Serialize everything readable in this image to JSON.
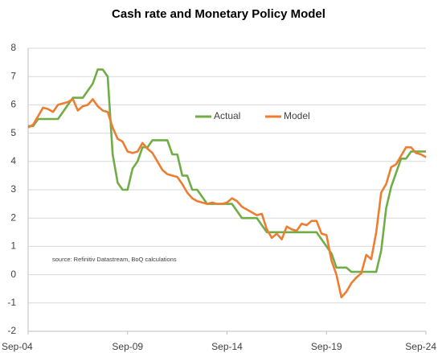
{
  "chart_data": {
    "type": "line",
    "title": "Cash rate and Monetary Policy Model",
    "annotation": "source:  Refinitiv Datastream, BoQ calculations",
    "legend": "center",
    "grid": true,
    "categories": [
      "Sep-04",
      null,
      null,
      null,
      null,
      null,
      null,
      null,
      null,
      null,
      null,
      null,
      null,
      null,
      null,
      null,
      null,
      null,
      null,
      null,
      "Sep-09",
      null,
      null,
      null,
      null,
      null,
      null,
      null,
      null,
      null,
      null,
      null,
      null,
      null,
      null,
      null,
      null,
      null,
      null,
      null,
      "Sep-14",
      null,
      null,
      null,
      null,
      null,
      null,
      null,
      null,
      null,
      null,
      null,
      null,
      null,
      null,
      null,
      null,
      null,
      null,
      null,
      "Sep-19",
      null,
      null,
      null,
      null,
      null,
      null,
      null,
      null,
      null,
      null,
      null,
      null,
      null,
      null,
      null,
      null,
      null,
      null,
      null,
      "Sep-24"
    ],
    "ylim": [
      -2,
      8
    ],
    "yticks": [
      -2,
      -1,
      0,
      1,
      2,
      3,
      4,
      5,
      6,
      7,
      8
    ],
    "series": [
      {
        "name": "Actual",
        "color": "#70ad47",
        "values": [
          5.25,
          5.25,
          5.5,
          5.5,
          5.5,
          5.5,
          5.5,
          5.75,
          6.0,
          6.25,
          6.25,
          6.25,
          6.5,
          6.75,
          7.25,
          7.25,
          7.0,
          4.25,
          3.25,
          3.0,
          3.0,
          3.75,
          4.0,
          4.5,
          4.5,
          4.75,
          4.75,
          4.75,
          4.75,
          4.25,
          4.25,
          3.5,
          3.5,
          3.0,
          3.0,
          2.75,
          2.5,
          2.5,
          2.5,
          2.5,
          2.5,
          2.5,
          2.25,
          2.0,
          2.0,
          2.0,
          2.0,
          1.75,
          1.5,
          1.5,
          1.5,
          1.5,
          1.5,
          1.5,
          1.5,
          1.5,
          1.5,
          1.5,
          1.5,
          1.25,
          1.0,
          0.75,
          0.25,
          0.25,
          0.25,
          0.1,
          0.1,
          0.1,
          0.1,
          0.1,
          0.1,
          0.85,
          2.35,
          3.1,
          3.6,
          4.1,
          4.1,
          4.35,
          4.35,
          4.35,
          4.35
        ]
      },
      {
        "name": "Model",
        "color": "#ed7d31",
        "values": [
          5.2,
          5.3,
          5.6,
          5.9,
          5.85,
          5.75,
          6.0,
          6.05,
          6.1,
          6.2,
          5.8,
          5.95,
          6.0,
          6.2,
          5.95,
          5.8,
          5.75,
          5.2,
          4.8,
          4.7,
          4.35,
          4.3,
          4.35,
          4.65,
          4.45,
          4.3,
          4.0,
          3.7,
          3.55,
          3.5,
          3.45,
          3.2,
          2.9,
          2.7,
          2.6,
          2.55,
          2.5,
          2.55,
          2.5,
          2.5,
          2.55,
          2.7,
          2.6,
          2.4,
          2.3,
          2.2,
          2.1,
          2.15,
          1.6,
          1.3,
          1.45,
          1.25,
          1.7,
          1.6,
          1.55,
          1.8,
          1.75,
          1.9,
          1.9,
          1.45,
          1.4,
          0.5,
          0.0,
          -0.8,
          -0.6,
          -0.3,
          -0.1,
          0.05,
          0.7,
          0.55,
          1.5,
          2.9,
          3.2,
          3.8,
          3.9,
          4.2,
          4.5,
          4.5,
          4.3,
          4.25,
          4.15
        ]
      }
    ]
  }
}
